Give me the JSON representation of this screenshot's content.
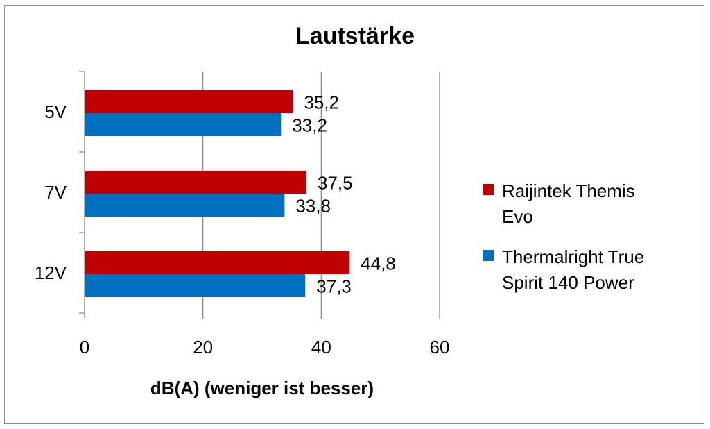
{
  "chart_data": {
    "type": "bar",
    "orientation": "horizontal",
    "title": "Lautstärke",
    "xlabel": "dB(A) (weniger ist besser)",
    "ylabel": "",
    "categories": [
      "5V",
      "7V",
      "12V"
    ],
    "series": [
      {
        "name": "Raijintek Themis Evo",
        "color": "#c00000",
        "values": [
          35.2,
          37.5,
          44.8
        ],
        "labels": [
          "35,2",
          "37,5",
          "44,8"
        ]
      },
      {
        "name": "Thermalright True Spirit 140 Power",
        "color": "#0070c0",
        "values": [
          33.2,
          33.8,
          37.3
        ],
        "labels": [
          "33,2",
          "33,8",
          "37,3"
        ]
      }
    ],
    "xlim": [
      0,
      60
    ],
    "xticks": [
      0,
      20,
      40,
      60
    ],
    "grid": "vertical major gridlines",
    "legend": {
      "position": "right",
      "lines": [
        [
          "Raijintek Themis",
          "Evo"
        ],
        [
          "Thermalright True",
          "Spirit 140 Power"
        ]
      ]
    }
  }
}
